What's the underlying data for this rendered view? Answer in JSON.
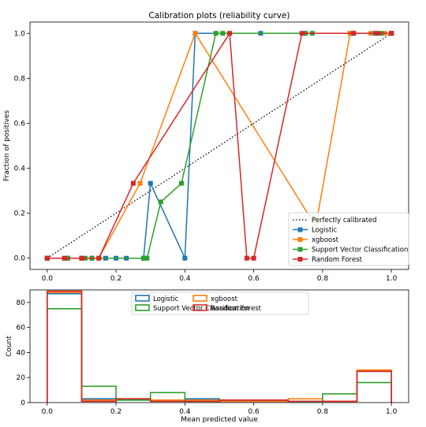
{
  "colors": {
    "Logistic": "#1f77b4",
    "xgboost": "#ff7f0e",
    "Support Vector Classification": "#2ca02c",
    "Random Forest": "#d62728",
    "Perfectly calibrated": "#000000"
  },
  "chart_data": [
    {
      "type": "line",
      "title": "Calibration plots  (reliability curve)",
      "xlabel": "",
      "ylabel": "Fraction of positives",
      "xlim": [
        -0.05,
        1.05
      ],
      "ylim": [
        -0.05,
        1.05
      ],
      "xticks": [
        0.0,
        0.2,
        0.4,
        0.6,
        0.8,
        1.0
      ],
      "yticks": [
        0.0,
        0.2,
        0.4,
        0.6,
        0.8,
        1.0
      ],
      "xtick_labels": [
        "0.0",
        "0.2",
        "0.4",
        "0.6",
        "0.8",
        "1.0"
      ],
      "ytick_labels": [
        "0.0",
        "0.2",
        "0.4",
        "0.6",
        "0.8",
        "1.0"
      ],
      "legend_position": "lower-right",
      "grid": false,
      "reference_line": {
        "name": "Perfectly calibrated",
        "style": "dotted",
        "x": [
          0,
          1
        ],
        "y": [
          0,
          1
        ]
      },
      "series": [
        {
          "name": "Logistic",
          "marker": "square",
          "x": [
            0.0,
            0.06,
            0.1,
            0.13,
            0.17,
            0.2,
            0.23,
            0.28,
            0.3,
            0.4,
            0.43,
            0.62,
            0.75,
            0.88,
            0.95,
            1.0
          ],
          "y": [
            0,
            0,
            0,
            0,
            0,
            0,
            0,
            0,
            0.333,
            0,
            1,
            1,
            1,
            1,
            1,
            1
          ]
        },
        {
          "name": "xgboost",
          "marker": "square",
          "x": [
            0.0,
            0.05,
            0.1,
            0.15,
            0.27,
            0.43,
            0.78,
            0.88,
            0.94,
            0.98,
            1.0
          ],
          "y": [
            0,
            0,
            0,
            0,
            0.333,
            1,
            0.142,
            1,
            1,
            1,
            1
          ],
          "visible_points": [
            0,
            1,
            2,
            3,
            4,
            5,
            7,
            8,
            9,
            10
          ]
        },
        {
          "name": "Support Vector Classification",
          "marker": "square",
          "x": [
            0.0,
            0.06,
            0.11,
            0.13,
            0.28,
            0.29,
            0.33,
            0.39,
            0.49,
            0.51,
            0.75,
            0.77,
            0.89,
            0.97,
            1.0
          ],
          "y": [
            0,
            0,
            0,
            0,
            0,
            0,
            0.25,
            0.333,
            1,
            1,
            1,
            1,
            1,
            1,
            1
          ]
        },
        {
          "name": "Random Forest",
          "marker": "square",
          "x": [
            0.0,
            0.05,
            0.1,
            0.15,
            0.25,
            0.53,
            0.58,
            0.6,
            0.74,
            0.89,
            0.96,
            1.0
          ],
          "y": [
            0,
            0,
            0,
            0,
            0.333,
            1,
            0,
            0,
            1,
            1,
            1,
            1
          ]
        }
      ]
    },
    {
      "type": "histogram",
      "title": "",
      "xlabel": "Mean predicted value",
      "ylabel": "Count",
      "xlim": [
        -0.05,
        1.05
      ],
      "ylim": [
        0,
        90
      ],
      "xticks": [
        0.0,
        0.2,
        0.4,
        0.6,
        0.8,
        1.0
      ],
      "yticks": [
        0,
        20,
        40,
        60,
        80
      ],
      "xtick_labels": [
        "0.0",
        "0.2",
        "0.4",
        "0.6",
        "0.8",
        "1.0"
      ],
      "ytick_labels": [
        "0",
        "20",
        "40",
        "60",
        "80"
      ],
      "bin_edges": [
        0.0,
        0.1,
        0.2,
        0.3,
        0.4,
        0.5,
        0.6,
        0.7,
        0.8,
        0.9,
        1.0
      ],
      "histtype": "step",
      "legend_position": "upper-center",
      "legend_columns": 2,
      "series": [
        {
          "name": "Logistic",
          "values": [
            87,
            3,
            2,
            2,
            3,
            1,
            1,
            1,
            1,
            25
          ]
        },
        {
          "name": "xgboost",
          "values": [
            88,
            2,
            3,
            2,
            2,
            1,
            1,
            3,
            1,
            26
          ]
        },
        {
          "name": "Support Vector Classification",
          "values": [
            75,
            13,
            2,
            8,
            1,
            2,
            2,
            1,
            7,
            16
          ]
        },
        {
          "name": "Random Forest",
          "values": [
            89,
            1,
            3,
            1,
            1,
            2,
            2,
            1,
            1,
            25
          ]
        }
      ]
    }
  ]
}
